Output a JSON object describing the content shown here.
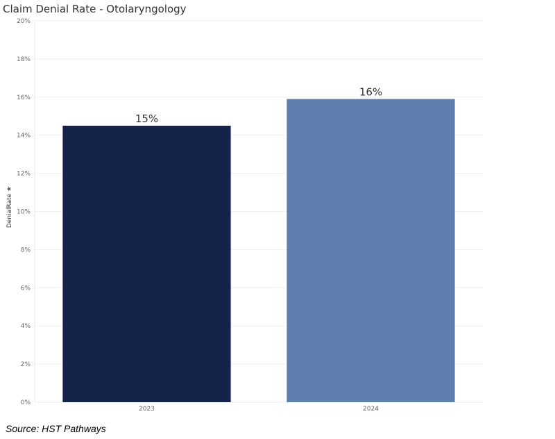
{
  "chart_data": {
    "type": "bar",
    "title": "Claim Denial Rate - Otolaryngology",
    "ylabel": "DenialRate",
    "xlabel": "",
    "categories": [
      "2023",
      "2024"
    ],
    "values": [
      14.5,
      15.9
    ],
    "data_labels": [
      "15%",
      "16%"
    ],
    "bar_colors": [
      "#15224a",
      "#5f80ae"
    ],
    "ylim": [
      0,
      20
    ],
    "yticks": [
      0,
      2,
      4,
      6,
      8,
      10,
      12,
      14,
      16,
      18,
      20
    ],
    "ytick_labels": [
      "0%",
      "2%",
      "4%",
      "6%",
      "8%",
      "10%",
      "12%",
      "14%",
      "16%",
      "18%",
      "20%"
    ],
    "grid": true,
    "legend": "none"
  },
  "ylabel_icon": "pin-icon",
  "source": "Source: HST Pathways"
}
